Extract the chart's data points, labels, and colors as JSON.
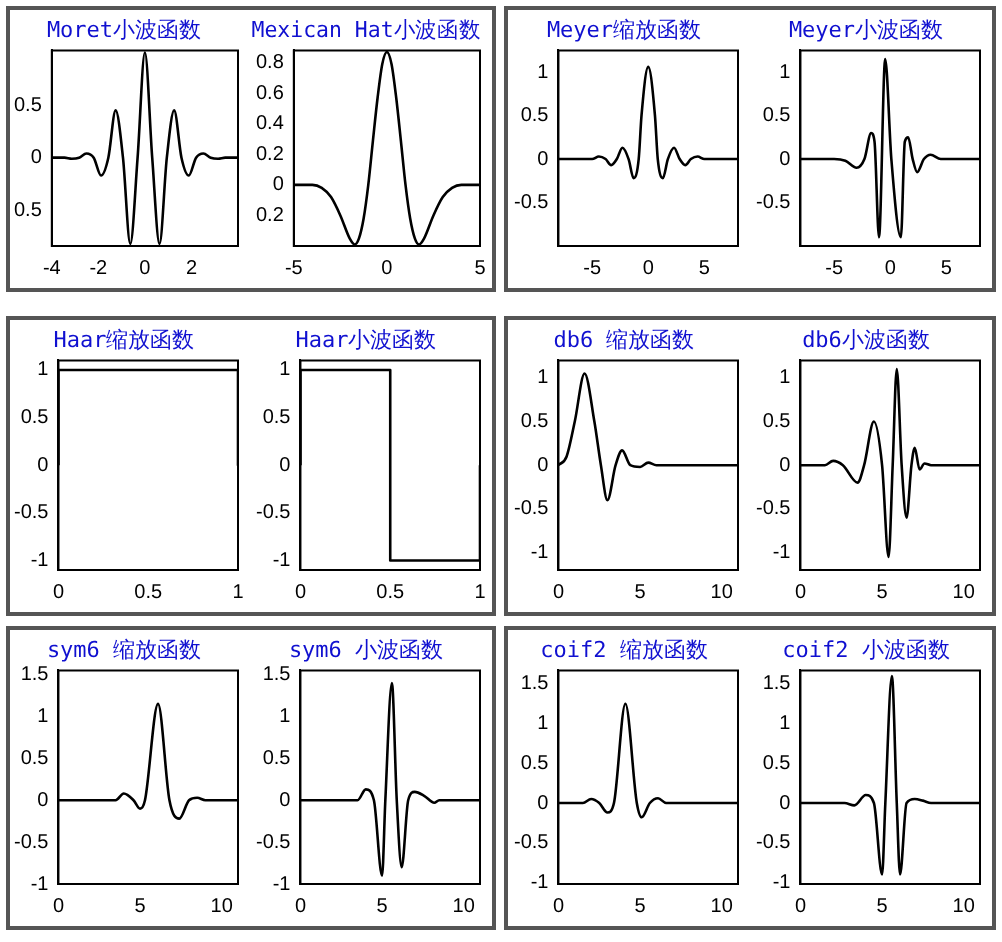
{
  "chart_data": [
    {
      "type": "line",
      "title": "Moret小波函数",
      "color": "#000000",
      "grid": false,
      "x": [
        -4,
        -3.456,
        -3.142,
        -2.827,
        -2.513,
        -2.199,
        -1.885,
        -1.571,
        -1.257,
        -0.942,
        -0.628,
        -0.314,
        0,
        0.314,
        0.628,
        0.942,
        1.257,
        1.571,
        1.885,
        2.199,
        2.513,
        2.827,
        3.142,
        3.456,
        4
      ],
      "values": [
        0,
        0,
        -0.01,
        0,
        0.04,
        0,
        -0.17,
        0,
        0.45,
        0,
        -0.82,
        0,
        1,
        0,
        -0.82,
        0,
        0.45,
        0,
        -0.17,
        0,
        0.04,
        0,
        -0.01,
        0,
        0
      ],
      "xlim": [
        -4,
        4
      ],
      "xticks": [
        -4,
        -2,
        0,
        2
      ],
      "ylim": [
        -0.84,
        1.02
      ],
      "yticks": [
        {
          "value": -0.5,
          "label": "0.5"
        },
        0,
        0.5
      ]
    },
    {
      "type": "line",
      "title": "Mexican Hat小波函数",
      "color": "#000000",
      "grid": false,
      "x": [
        -5,
        -4.5,
        -4,
        -3.5,
        -3,
        -2.5,
        -2,
        -1.732,
        -1.5,
        -1.25,
        -1,
        -0.75,
        -0.5,
        -0.25,
        0,
        0.25,
        0.5,
        0.75,
        1,
        1.25,
        1.5,
        1.732,
        2,
        2.5,
        3,
        3.5,
        4,
        4.5,
        5
      ],
      "values": [
        0,
        0,
        0,
        -0.02,
        -0.08,
        -0.2,
        -0.35,
        -0.39,
        -0.35,
        -0.22,
        0,
        0.29,
        0.57,
        0.79,
        0.87,
        0.79,
        0.57,
        0.29,
        0,
        -0.22,
        -0.35,
        -0.39,
        -0.35,
        -0.2,
        -0.08,
        -0.02,
        0,
        0,
        0
      ],
      "xlim": [
        -5,
        5
      ],
      "xticks": [
        -5,
        0,
        5
      ],
      "ylim": [
        -0.4,
        0.88
      ],
      "yticks": [
        {
          "value": -0.2,
          "label": "0.2"
        },
        0,
        0.2,
        0.4,
        0.6,
        0.8
      ]
    },
    {
      "type": "line",
      "title": "Meyer缩放函数",
      "color": "#000000",
      "grid": false,
      "x": [
        -8,
        -5,
        -4.4,
        -3.8,
        -3.3,
        -2.8,
        -2.3,
        -1.75,
        -1.3,
        -0.85,
        -0.6,
        0,
        0.6,
        0.85,
        1.3,
        1.75,
        2.3,
        2.8,
        3.3,
        3.8,
        4.4,
        5,
        8
      ],
      "values": [
        0,
        0,
        0.03,
        0,
        -0.07,
        0,
        0.13,
        0,
        -0.22,
        0,
        0.5,
        1.06,
        0.5,
        0,
        -0.22,
        0,
        0.13,
        0,
        -0.07,
        0,
        0.03,
        0,
        0
      ],
      "xlim": [
        -8,
        8
      ],
      "xticks": [
        -5,
        0,
        5
      ],
      "ylim": [
        -1,
        1.25
      ],
      "yticks": [
        -0.5,
        0,
        0.5,
        1
      ]
    },
    {
      "type": "line",
      "title": "Meyer小波函数",
      "color": "#000000",
      "grid": false,
      "x": [
        -8,
        -5,
        -4,
        -3,
        -2.3,
        -1.7,
        -1.4,
        -1,
        -0.45,
        0.1,
        0.95,
        1.3,
        1.6,
        2,
        2.4,
        3,
        3.6,
        4.5,
        8
      ],
      "values": [
        0,
        0,
        -0.02,
        -0.1,
        0,
        0.3,
        0.2,
        -0.9,
        1.15,
        0,
        -0.9,
        0.2,
        0.25,
        0,
        -0.15,
        0,
        0.05,
        0,
        0
      ],
      "xlim": [
        -8,
        8
      ],
      "xticks": [
        -5,
        0,
        5
      ],
      "ylim": [
        -1,
        1.25
      ],
      "yticks": [
        -0.5,
        0,
        0.5,
        1
      ]
    },
    {
      "type": "line",
      "title": "Haar缩放函数",
      "color": "#000000",
      "grid": false,
      "x": [
        0,
        0,
        1,
        1
      ],
      "values": [
        0,
        1,
        1,
        0
      ],
      "xlim": [
        0,
        1
      ],
      "xticks": [
        0,
        0.5,
        1
      ],
      "ylim": [
        -1.1,
        1.1
      ],
      "yticks": [
        -1,
        -0.5,
        0,
        0.5,
        1
      ]
    },
    {
      "type": "line",
      "title": "Haar小波函数",
      "color": "#000000",
      "grid": false,
      "x": [
        0,
        0,
        0.5,
        0.5,
        1,
        1
      ],
      "values": [
        0,
        1,
        1,
        -1,
        -1,
        0
      ],
      "xlim": [
        0,
        1
      ],
      "xticks": [
        0,
        0.5,
        1
      ],
      "ylim": [
        -1.1,
        1.1
      ],
      "yticks": [
        -1,
        -0.5,
        0,
        0.5,
        1
      ]
    },
    {
      "type": "line",
      "title": "db6 缩放函数",
      "color": "#000000",
      "grid": false,
      "x": [
        0,
        0.5,
        1,
        1.6,
        2.2,
        2.6,
        3,
        3.5,
        3.9,
        4.4,
        5,
        5.5,
        6,
        11
      ],
      "values": [
        0,
        0.1,
        0.5,
        1.05,
        0.5,
        0,
        -0.4,
        0,
        0.17,
        0,
        -0.02,
        0.03,
        0,
        0
      ],
      "xlim": [
        0,
        11
      ],
      "xticks": [
        0,
        5,
        10
      ],
      "ylim": [
        -1.2,
        1.2
      ],
      "yticks": [
        -1,
        -0.5,
        0,
        0.5,
        1
      ]
    },
    {
      "type": "line",
      "title": "db6小波函数",
      "color": "#000000",
      "grid": false,
      "x": [
        0,
        1.5,
        2,
        2.6,
        3.5,
        3.9,
        4.5,
        5,
        5.4,
        5.65,
        5.9,
        6.2,
        6.5,
        6.8,
        7,
        7.3,
        7.6,
        8,
        11
      ],
      "values": [
        0,
        0,
        0.05,
        0,
        -0.2,
        0,
        0.5,
        0,
        -1.05,
        0,
        1.1,
        0,
        -0.6,
        0,
        0.2,
        -0.05,
        0.02,
        0,
        0
      ],
      "xlim": [
        0,
        11
      ],
      "xticks": [
        0,
        5,
        10
      ],
      "ylim": [
        -1.2,
        1.2
      ],
      "yticks": [
        -1,
        -0.5,
        0,
        0.5,
        1
      ]
    },
    {
      "type": "line",
      "title": "sym6 缩放函数",
      "color": "#000000",
      "grid": false,
      "x": [
        0,
        3.5,
        4,
        4.6,
        5,
        5.3,
        6.1,
        6.8,
        7.4,
        8,
        8.5,
        9,
        11
      ],
      "values": [
        0,
        0,
        0.08,
        0,
        -0.1,
        0,
        1.15,
        0,
        -0.22,
        0,
        0.03,
        0,
        0
      ],
      "xlim": [
        0,
        11
      ],
      "xticks": [
        0,
        5,
        10
      ],
      "ylim": [
        -1,
        1.55
      ],
      "yticks": [
        -1,
        -0.5,
        0,
        0.5,
        1,
        1.5
      ]
    },
    {
      "type": "line",
      "title": "sym6 小波函数",
      "color": "#000000",
      "grid": false,
      "x": [
        0,
        3.5,
        4,
        4.5,
        5,
        5.2,
        5.6,
        5.9,
        6.2,
        6.6,
        7,
        7.6,
        8.2,
        8.5,
        11
      ],
      "values": [
        0,
        0,
        0.13,
        0,
        -0.9,
        0,
        1.4,
        0,
        -0.8,
        0,
        0.1,
        0.05,
        -0.03,
        0,
        0
      ],
      "xlim": [
        0,
        11
      ],
      "xticks": [
        0,
        5,
        10
      ],
      "ylim": [
        -1,
        1.55
      ],
      "yticks": [
        -1,
        -0.5,
        0,
        0.5,
        1,
        1.5
      ]
    },
    {
      "type": "line",
      "title": "coif2 缩放函数",
      "color": "#000000",
      "grid": false,
      "x": [
        0,
        1.5,
        2,
        2.5,
        3,
        3.4,
        4.1,
        4.8,
        5.1,
        5.6,
        6.1,
        6.6,
        11
      ],
      "values": [
        0,
        0,
        0.05,
        0,
        -0.12,
        0,
        1.25,
        0,
        -0.18,
        0,
        0.06,
        0,
        0
      ],
      "xlim": [
        0,
        11
      ],
      "xticks": [
        0,
        5,
        10
      ],
      "ylim": [
        -1.02,
        1.67
      ],
      "yticks": [
        -1,
        -0.5,
        0,
        0.5,
        1,
        1.5
      ]
    },
    {
      "type": "line",
      "title": "coif2 小波函数",
      "color": "#000000",
      "grid": false,
      "x": [
        0,
        2.7,
        3.3,
        4,
        4.5,
        5,
        5.2,
        5.6,
        5.9,
        6.1,
        6.5,
        7,
        7.5,
        8,
        11
      ],
      "values": [
        0,
        0,
        -0.03,
        0.1,
        0,
        -0.9,
        0,
        1.6,
        0,
        -0.9,
        0,
        0.05,
        0.03,
        0,
        0
      ],
      "xlim": [
        0,
        11
      ],
      "xticks": [
        0,
        5,
        10
      ],
      "ylim": [
        -1.02,
        1.67
      ],
      "yticks": [
        -1,
        -0.5,
        0,
        0.5,
        1,
        1.5
      ]
    }
  ]
}
